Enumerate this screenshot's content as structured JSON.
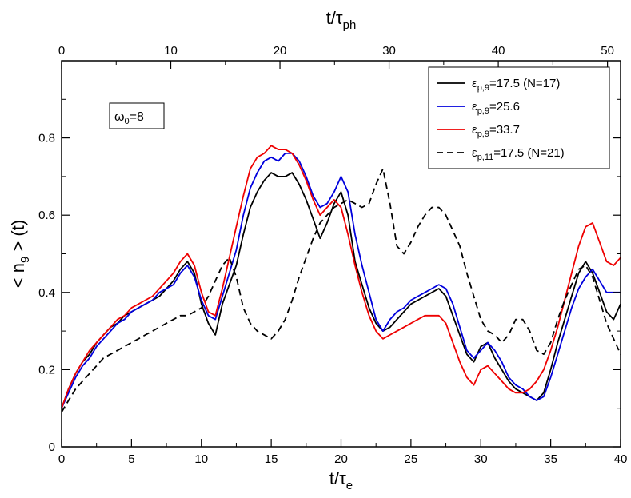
{
  "chart_data": {
    "type": "line",
    "xlabel": {
      "base": "t/τ",
      "sub": "e"
    },
    "x2label": {
      "base": "t/τ",
      "sub": "ph"
    },
    "ylabel": {
      "prefix": "< n",
      "sub": "9",
      "suffix": " > (t)"
    },
    "xlim": [
      0,
      40
    ],
    "x2lim": [
      0,
      51.2
    ],
    "ylim": [
      0,
      1.0
    ],
    "xticks": [
      0,
      5,
      10,
      15,
      20,
      25,
      30,
      35,
      40
    ],
    "x2ticks": [
      0,
      10,
      20,
      30,
      40,
      50
    ],
    "yticks": [
      0,
      0.2,
      0.4,
      0.6,
      0.8
    ],
    "ytick_labels": [
      "0",
      "0.2",
      "0.4",
      "0.6",
      "0.8"
    ],
    "grid": false,
    "legend_position": "top-right",
    "annotation": {
      "base": "ω",
      "sub": "0",
      "rest": "=8"
    },
    "series": [
      {
        "name": "ε_{p,9}=17.5 (N=17)",
        "legend": {
          "base": "ε",
          "sub": "p,9",
          "rest": "=17.5 (N=17)"
        },
        "color": "#000000",
        "dash": "solid",
        "x": [
          0,
          0.5,
          1,
          1.5,
          2,
          2.5,
          3,
          3.5,
          4,
          4.5,
          5,
          5.5,
          6,
          6.5,
          7,
          7.5,
          8,
          8.5,
          9,
          9.5,
          10,
          10.5,
          11,
          11.5,
          12,
          12.5,
          13,
          13.5,
          14,
          14.5,
          15,
          15.5,
          16,
          16.5,
          17,
          17.5,
          18,
          18.5,
          19,
          19.5,
          20,
          20.5,
          21,
          21.5,
          22,
          22.5,
          23,
          23.5,
          24,
          24.5,
          25,
          25.5,
          26,
          26.5,
          27,
          27.5,
          28,
          28.5,
          29,
          29.5,
          30,
          30.5,
          31,
          31.5,
          32,
          32.5,
          33,
          33.5,
          34,
          34.5,
          35,
          35.5,
          36,
          36.5,
          37,
          37.5,
          38,
          38.5,
          39,
          39.5,
          40
        ],
        "y": [
          0.1,
          0.15,
          0.19,
          0.22,
          0.24,
          0.27,
          0.29,
          0.31,
          0.32,
          0.34,
          0.35,
          0.36,
          0.37,
          0.38,
          0.39,
          0.41,
          0.43,
          0.46,
          0.48,
          0.45,
          0.37,
          0.32,
          0.29,
          0.37,
          0.42,
          0.47,
          0.55,
          0.62,
          0.66,
          0.69,
          0.71,
          0.7,
          0.7,
          0.71,
          0.68,
          0.64,
          0.59,
          0.54,
          0.58,
          0.63,
          0.66,
          0.6,
          0.48,
          0.42,
          0.36,
          0.32,
          0.3,
          0.31,
          0.33,
          0.35,
          0.37,
          0.38,
          0.39,
          0.4,
          0.41,
          0.39,
          0.34,
          0.29,
          0.24,
          0.22,
          0.26,
          0.27,
          0.23,
          0.2,
          0.17,
          0.15,
          0.14,
          0.13,
          0.12,
          0.14,
          0.2,
          0.27,
          0.33,
          0.39,
          0.45,
          0.48,
          0.45,
          0.4,
          0.35,
          0.33,
          0.37
        ]
      },
      {
        "name": "ε_{p,9}=25.6",
        "legend": {
          "base": "ε",
          "sub": "p,9",
          "rest": "=25.6"
        },
        "color": "#0000dd",
        "dash": "solid",
        "x": [
          0,
          0.5,
          1,
          1.5,
          2,
          2.5,
          3,
          3.5,
          4,
          4.5,
          5,
          5.5,
          6,
          6.5,
          7,
          7.5,
          8,
          8.5,
          9,
          9.5,
          10,
          10.5,
          11,
          11.5,
          12,
          12.5,
          13,
          13.5,
          14,
          14.5,
          15,
          15.5,
          16,
          16.5,
          17,
          17.5,
          18,
          18.5,
          19,
          19.5,
          20,
          20.5,
          21,
          21.5,
          22,
          22.5,
          23,
          23.5,
          24,
          24.5,
          25,
          25.5,
          26,
          26.5,
          27,
          27.5,
          28,
          28.5,
          29,
          29.5,
          30,
          30.5,
          31,
          31.5,
          32,
          32.5,
          33,
          33.5,
          34,
          34.5,
          35,
          35.5,
          36,
          36.5,
          37,
          37.5,
          38,
          38.5,
          39,
          39.5,
          40
        ],
        "y": [
          0.1,
          0.14,
          0.18,
          0.21,
          0.23,
          0.26,
          0.28,
          0.3,
          0.32,
          0.33,
          0.35,
          0.36,
          0.37,
          0.38,
          0.4,
          0.41,
          0.42,
          0.45,
          0.47,
          0.44,
          0.38,
          0.34,
          0.33,
          0.39,
          0.45,
          0.51,
          0.6,
          0.67,
          0.71,
          0.74,
          0.75,
          0.74,
          0.76,
          0.76,
          0.74,
          0.7,
          0.65,
          0.62,
          0.63,
          0.66,
          0.7,
          0.66,
          0.55,
          0.47,
          0.4,
          0.33,
          0.3,
          0.33,
          0.35,
          0.36,
          0.38,
          0.39,
          0.4,
          0.41,
          0.42,
          0.41,
          0.37,
          0.31,
          0.25,
          0.23,
          0.25,
          0.27,
          0.25,
          0.22,
          0.18,
          0.16,
          0.15,
          0.13,
          0.12,
          0.13,
          0.18,
          0.24,
          0.3,
          0.36,
          0.41,
          0.44,
          0.46,
          0.43,
          0.4,
          0.4,
          0.4
        ]
      },
      {
        "name": "ε_{p,9}=33.7",
        "legend": {
          "base": "ε",
          "sub": "p,9",
          "rest": "=33.7"
        },
        "color": "#ee0000",
        "dash": "solid",
        "x": [
          0,
          0.5,
          1,
          1.5,
          2,
          2.5,
          3,
          3.5,
          4,
          4.5,
          5,
          5.5,
          6,
          6.5,
          7,
          7.5,
          8,
          8.5,
          9,
          9.5,
          10,
          10.5,
          11,
          11.5,
          12,
          12.5,
          13,
          13.5,
          14,
          14.5,
          15,
          15.5,
          16,
          16.5,
          17,
          17.5,
          18,
          18.5,
          19,
          19.5,
          20,
          20.5,
          21,
          21.5,
          22,
          22.5,
          23,
          23.5,
          24,
          24.5,
          25,
          25.5,
          26,
          26.5,
          27,
          27.5,
          28,
          28.5,
          29,
          29.5,
          30,
          30.5,
          31,
          31.5,
          32,
          32.5,
          33,
          33.5,
          34,
          34.5,
          35,
          35.5,
          36,
          36.5,
          37,
          37.5,
          38,
          38.5,
          39,
          39.5,
          40
        ],
        "y": [
          0.1,
          0.15,
          0.19,
          0.22,
          0.25,
          0.27,
          0.29,
          0.31,
          0.33,
          0.34,
          0.36,
          0.37,
          0.38,
          0.39,
          0.41,
          0.43,
          0.45,
          0.48,
          0.5,
          0.47,
          0.4,
          0.35,
          0.34,
          0.41,
          0.49,
          0.57,
          0.65,
          0.72,
          0.75,
          0.76,
          0.78,
          0.77,
          0.77,
          0.76,
          0.73,
          0.69,
          0.64,
          0.6,
          0.62,
          0.64,
          0.62,
          0.55,
          0.47,
          0.4,
          0.34,
          0.3,
          0.28,
          0.29,
          0.3,
          0.31,
          0.32,
          0.33,
          0.34,
          0.34,
          0.34,
          0.32,
          0.27,
          0.22,
          0.18,
          0.16,
          0.2,
          0.21,
          0.19,
          0.17,
          0.15,
          0.14,
          0.14,
          0.15,
          0.17,
          0.2,
          0.25,
          0.31,
          0.38,
          0.45,
          0.52,
          0.57,
          0.58,
          0.53,
          0.48,
          0.47,
          0.49
        ]
      },
      {
        "name": "ε_{p,11}=17.5 (N=21)",
        "legend": {
          "base": "ε",
          "sub": "p,11",
          "rest": "=17.5 (N=21)"
        },
        "color": "#000000",
        "dash": "dashed",
        "x": [
          0,
          0.5,
          1,
          1.5,
          2,
          2.5,
          3,
          3.5,
          4,
          4.5,
          5,
          5.5,
          6,
          6.5,
          7,
          7.5,
          8,
          8.5,
          9,
          9.5,
          10,
          10.5,
          11,
          11.5,
          12,
          12.5,
          13,
          13.5,
          14,
          14.5,
          15,
          15.5,
          16,
          16.5,
          17,
          17.5,
          18,
          18.5,
          19,
          19.5,
          20,
          20.5,
          21,
          21.5,
          22,
          22.5,
          23,
          23.5,
          24,
          24.5,
          25,
          25.5,
          26,
          26.5,
          27,
          27.5,
          28,
          28.5,
          29,
          29.5,
          30,
          30.5,
          31,
          31.5,
          32,
          32.5,
          33,
          33.5,
          34,
          34.5,
          35,
          35.5,
          36,
          36.5,
          37,
          37.5,
          38,
          38.5,
          39,
          39.5,
          40
        ],
        "y": [
          0.09,
          0.12,
          0.15,
          0.17,
          0.19,
          0.21,
          0.23,
          0.24,
          0.25,
          0.26,
          0.27,
          0.28,
          0.29,
          0.3,
          0.31,
          0.32,
          0.33,
          0.34,
          0.34,
          0.35,
          0.36,
          0.39,
          0.43,
          0.47,
          0.49,
          0.44,
          0.36,
          0.32,
          0.3,
          0.29,
          0.28,
          0.3,
          0.33,
          0.38,
          0.44,
          0.49,
          0.54,
          0.58,
          0.6,
          0.62,
          0.63,
          0.64,
          0.63,
          0.62,
          0.63,
          0.68,
          0.72,
          0.63,
          0.52,
          0.5,
          0.53,
          0.57,
          0.6,
          0.62,
          0.62,
          0.6,
          0.56,
          0.52,
          0.45,
          0.39,
          0.33,
          0.3,
          0.29,
          0.27,
          0.29,
          0.33,
          0.33,
          0.3,
          0.25,
          0.24,
          0.27,
          0.33,
          0.38,
          0.42,
          0.46,
          0.47,
          0.44,
          0.38,
          0.32,
          0.28,
          0.24
        ]
      }
    ]
  }
}
